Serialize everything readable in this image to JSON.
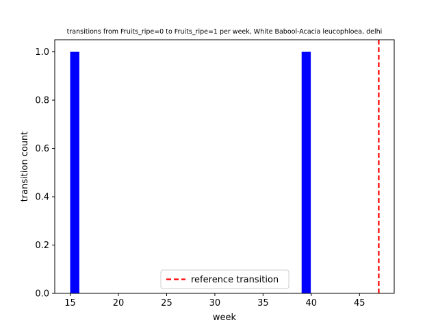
{
  "chart_data": {
    "type": "bar",
    "title": "transitions from Fruits_ripe=0 to Fruits_ripe=1 per week, White Babool-Acacia leucophloea, delhi",
    "xlabel": "week",
    "ylabel": "transition count",
    "xlim": [
      13.4,
      48.6
    ],
    "ylim": [
      0,
      1.05
    ],
    "x_ticks": [
      15,
      20,
      25,
      30,
      35,
      40,
      45
    ],
    "y_ticks": [
      0.0,
      0.2,
      0.4,
      0.6,
      0.8,
      1.0
    ],
    "x_tick_labels": [
      "15",
      "20",
      "25",
      "30",
      "35",
      "40",
      "45"
    ],
    "y_tick_labels": [
      "0.0",
      "0.2",
      "0.4",
      "0.6",
      "0.8",
      "1.0"
    ],
    "bar_color": "#0000ff",
    "bars": [
      {
        "week": 15,
        "count": 1
      },
      {
        "week": 39,
        "count": 1
      }
    ],
    "reference_line": {
      "week": 47,
      "label": "reference transition",
      "color": "#ff0000",
      "style": "dashed"
    },
    "legend_position": "lower-center",
    "grid": false
  }
}
